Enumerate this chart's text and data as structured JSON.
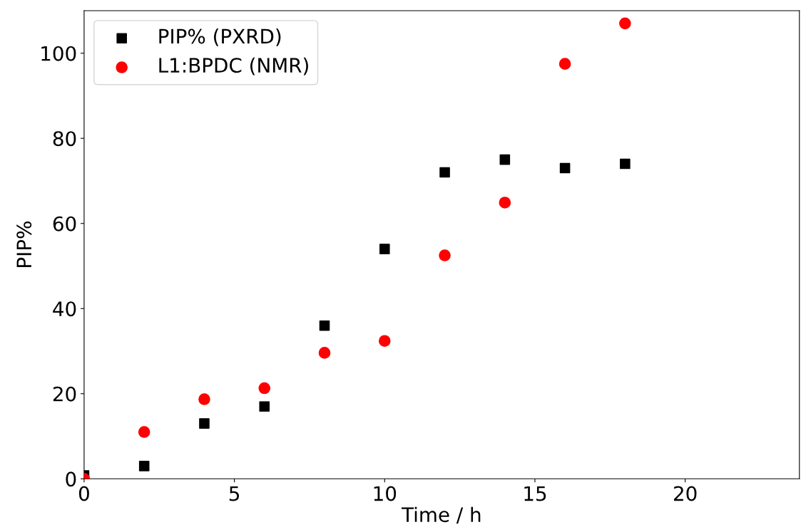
{
  "chart_data": {
    "type": "scatter",
    "xlabel": "Time / h",
    "ylabel": "PIP%",
    "x": [
      0,
      2,
      4,
      6,
      8,
      10,
      12,
      14,
      16,
      18
    ],
    "series": [
      {
        "name": "PIP% (PXRD)",
        "color": "#000000",
        "marker": "square",
        "values": [
          0.8,
          3,
          13,
          17,
          36,
          54,
          72,
          75,
          73,
          74
        ]
      },
      {
        "name": "L1:BPDC (NMR)",
        "color": "#ff0000",
        "marker": "circle",
        "values": [
          0,
          11,
          18.7,
          21.3,
          29.6,
          32.4,
          52.5,
          64.9,
          97.5,
          107
        ]
      }
    ],
    "xlim": [
      0,
      23.8
    ],
    "xticks": [
      0,
      5,
      10,
      15,
      20
    ],
    "ylim": [
      0,
      110
    ],
    "yticks": [
      0,
      20,
      40,
      60,
      80,
      100
    ],
    "grid": false,
    "legend": "top left"
  }
}
